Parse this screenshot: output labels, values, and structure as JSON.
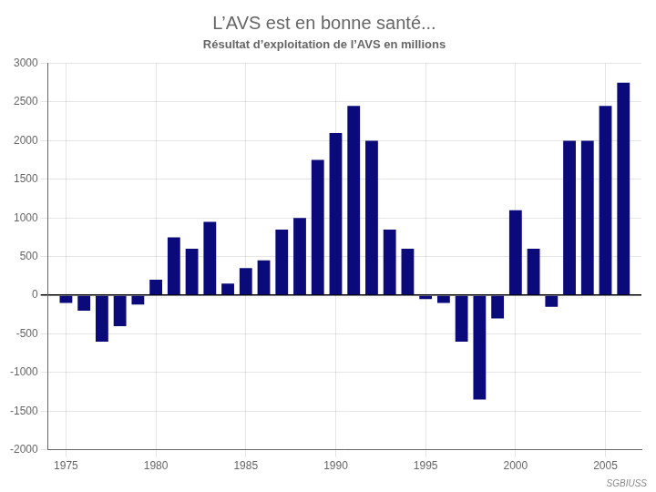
{
  "chart_data": {
    "type": "bar",
    "title": "L’AVS est en bonne santé...",
    "subtitle": "Résultat d’exploitation de l’AVS en millions",
    "x": [
      1975,
      1976,
      1977,
      1978,
      1979,
      1980,
      1981,
      1982,
      1983,
      1984,
      1985,
      1986,
      1987,
      1988,
      1989,
      1990,
      1991,
      1992,
      1993,
      1994,
      1995,
      1996,
      1997,
      1998,
      1999,
      2000,
      2001,
      2002,
      2003,
      2004,
      2005,
      2006
    ],
    "values": [
      -100,
      -200,
      -600,
      -400,
      -120,
      200,
      750,
      600,
      950,
      150,
      350,
      450,
      850,
      1000,
      1750,
      2100,
      2450,
      2000,
      850,
      600,
      -50,
      -100,
      -600,
      -1350,
      -300,
      1100,
      600,
      -150,
      2000,
      2000,
      2450,
      2750
    ],
    "color": "#0A0A7A",
    "xlim": [
      1974,
      2007
    ],
    "xticks": [
      1975,
      1980,
      1985,
      1990,
      1995,
      2000,
      2005
    ],
    "ylim": [
      -2000,
      3000
    ],
    "yticks": [
      -2000,
      -1500,
      -1000,
      -500,
      0,
      500,
      1000,
      1500,
      2000,
      2500,
      3000
    ],
    "grid": true,
    "annotations": [
      "SGBIUSS"
    ]
  }
}
